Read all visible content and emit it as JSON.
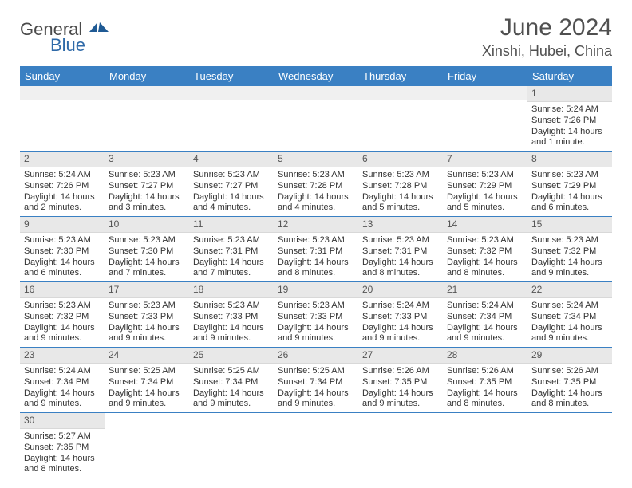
{
  "brand": {
    "name": "General",
    "sub": "Blue"
  },
  "title": "June 2024",
  "location": "Xinshi, Hubei, China",
  "colors": {
    "header_bg": "#3a80c3",
    "header_fg": "#ffffff",
    "daynum_bg": "#e8e8e8",
    "row_border": "#3a80c3",
    "text": "#333333",
    "title_color": "#505050",
    "logo_accent": "#2f6aa8"
  },
  "fonts": {
    "base_family": "Arial",
    "title_size_pt": 22,
    "header_size_pt": 10,
    "cell_size_pt": 8
  },
  "layout": {
    "cols": 7,
    "rows": 6,
    "start_weekday": "Sunday",
    "first_day_col": 6
  },
  "weekdays": [
    "Sunday",
    "Monday",
    "Tuesday",
    "Wednesday",
    "Thursday",
    "Friday",
    "Saturday"
  ],
  "days": [
    {
      "n": 1,
      "sunrise": "5:24 AM",
      "sunset": "7:26 PM",
      "daylight": "14 hours and 1 minute."
    },
    {
      "n": 2,
      "sunrise": "5:24 AM",
      "sunset": "7:26 PM",
      "daylight": "14 hours and 2 minutes."
    },
    {
      "n": 3,
      "sunrise": "5:23 AM",
      "sunset": "7:27 PM",
      "daylight": "14 hours and 3 minutes."
    },
    {
      "n": 4,
      "sunrise": "5:23 AM",
      "sunset": "7:27 PM",
      "daylight": "14 hours and 4 minutes."
    },
    {
      "n": 5,
      "sunrise": "5:23 AM",
      "sunset": "7:28 PM",
      "daylight": "14 hours and 4 minutes."
    },
    {
      "n": 6,
      "sunrise": "5:23 AM",
      "sunset": "7:28 PM",
      "daylight": "14 hours and 5 minutes."
    },
    {
      "n": 7,
      "sunrise": "5:23 AM",
      "sunset": "7:29 PM",
      "daylight": "14 hours and 5 minutes."
    },
    {
      "n": 8,
      "sunrise": "5:23 AM",
      "sunset": "7:29 PM",
      "daylight": "14 hours and 6 minutes."
    },
    {
      "n": 9,
      "sunrise": "5:23 AM",
      "sunset": "7:30 PM",
      "daylight": "14 hours and 6 minutes."
    },
    {
      "n": 10,
      "sunrise": "5:23 AM",
      "sunset": "7:30 PM",
      "daylight": "14 hours and 7 minutes."
    },
    {
      "n": 11,
      "sunrise": "5:23 AM",
      "sunset": "7:31 PM",
      "daylight": "14 hours and 7 minutes."
    },
    {
      "n": 12,
      "sunrise": "5:23 AM",
      "sunset": "7:31 PM",
      "daylight": "14 hours and 8 minutes."
    },
    {
      "n": 13,
      "sunrise": "5:23 AM",
      "sunset": "7:31 PM",
      "daylight": "14 hours and 8 minutes."
    },
    {
      "n": 14,
      "sunrise": "5:23 AM",
      "sunset": "7:32 PM",
      "daylight": "14 hours and 8 minutes."
    },
    {
      "n": 15,
      "sunrise": "5:23 AM",
      "sunset": "7:32 PM",
      "daylight": "14 hours and 9 minutes."
    },
    {
      "n": 16,
      "sunrise": "5:23 AM",
      "sunset": "7:32 PM",
      "daylight": "14 hours and 9 minutes."
    },
    {
      "n": 17,
      "sunrise": "5:23 AM",
      "sunset": "7:33 PM",
      "daylight": "14 hours and 9 minutes."
    },
    {
      "n": 18,
      "sunrise": "5:23 AM",
      "sunset": "7:33 PM",
      "daylight": "14 hours and 9 minutes."
    },
    {
      "n": 19,
      "sunrise": "5:23 AM",
      "sunset": "7:33 PM",
      "daylight": "14 hours and 9 minutes."
    },
    {
      "n": 20,
      "sunrise": "5:24 AM",
      "sunset": "7:33 PM",
      "daylight": "14 hours and 9 minutes."
    },
    {
      "n": 21,
      "sunrise": "5:24 AM",
      "sunset": "7:34 PM",
      "daylight": "14 hours and 9 minutes."
    },
    {
      "n": 22,
      "sunrise": "5:24 AM",
      "sunset": "7:34 PM",
      "daylight": "14 hours and 9 minutes."
    },
    {
      "n": 23,
      "sunrise": "5:24 AM",
      "sunset": "7:34 PM",
      "daylight": "14 hours and 9 minutes."
    },
    {
      "n": 24,
      "sunrise": "5:25 AM",
      "sunset": "7:34 PM",
      "daylight": "14 hours and 9 minutes."
    },
    {
      "n": 25,
      "sunrise": "5:25 AM",
      "sunset": "7:34 PM",
      "daylight": "14 hours and 9 minutes."
    },
    {
      "n": 26,
      "sunrise": "5:25 AM",
      "sunset": "7:34 PM",
      "daylight": "14 hours and 9 minutes."
    },
    {
      "n": 27,
      "sunrise": "5:26 AM",
      "sunset": "7:35 PM",
      "daylight": "14 hours and 9 minutes."
    },
    {
      "n": 28,
      "sunrise": "5:26 AM",
      "sunset": "7:35 PM",
      "daylight": "14 hours and 8 minutes."
    },
    {
      "n": 29,
      "sunrise": "5:26 AM",
      "sunset": "7:35 PM",
      "daylight": "14 hours and 8 minutes."
    },
    {
      "n": 30,
      "sunrise": "5:27 AM",
      "sunset": "7:35 PM",
      "daylight": "14 hours and 8 minutes."
    }
  ],
  "labels": {
    "sunrise": "Sunrise:",
    "sunset": "Sunset:",
    "daylight": "Daylight:"
  }
}
